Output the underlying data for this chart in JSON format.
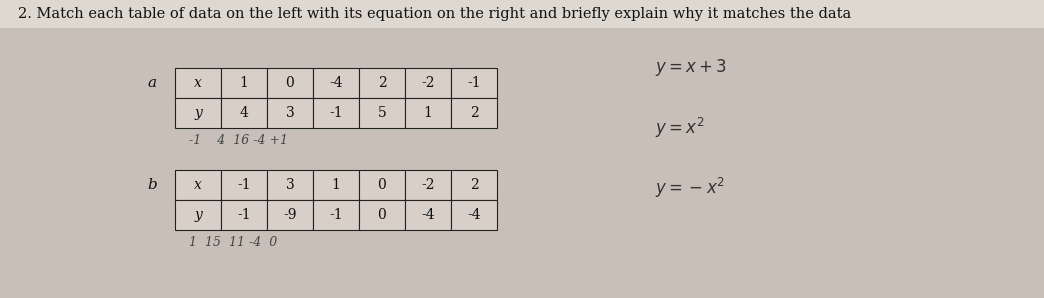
{
  "title": "2. Match each table of data on the left with its equation on the right and briefly explain why it matches the data",
  "title_fontsize": 10.5,
  "bg_color": "#c8c0b8",
  "title_bg": "#e8e0d8",
  "table_a_label": "a",
  "table_b_label": "b",
  "table_a_x_label": "x",
  "table_a_y_label": "y",
  "table_b_x_label": "x",
  "table_b_y_label": "y",
  "table_a_x_vals": [
    "1",
    "0",
    "-4",
    "2",
    "-2",
    "-1"
  ],
  "table_a_y_vals": [
    "4",
    "3",
    "-1",
    "5",
    "1",
    "2"
  ],
  "table_a_notes": "-1    4  16 -4 +1",
  "table_b_x_vals": [
    "-1",
    "3",
    "1",
    "0",
    "-2",
    "2"
  ],
  "table_b_y_vals": [
    "-1",
    "-9",
    "-1",
    "0",
    "-4",
    "-4"
  ],
  "table_b_notes": "1  15  11 -4  0",
  "eq1": "y = x + 3",
  "eq2": "y = x^{2}",
  "eq3": "y = -x^{2}",
  "eq_fontsize": 12,
  "cell_bg": "#d8d0c8",
  "cell_edge": "#222222",
  "table_fontsize": 10,
  "label_fontsize": 11,
  "note_fontsize": 9
}
